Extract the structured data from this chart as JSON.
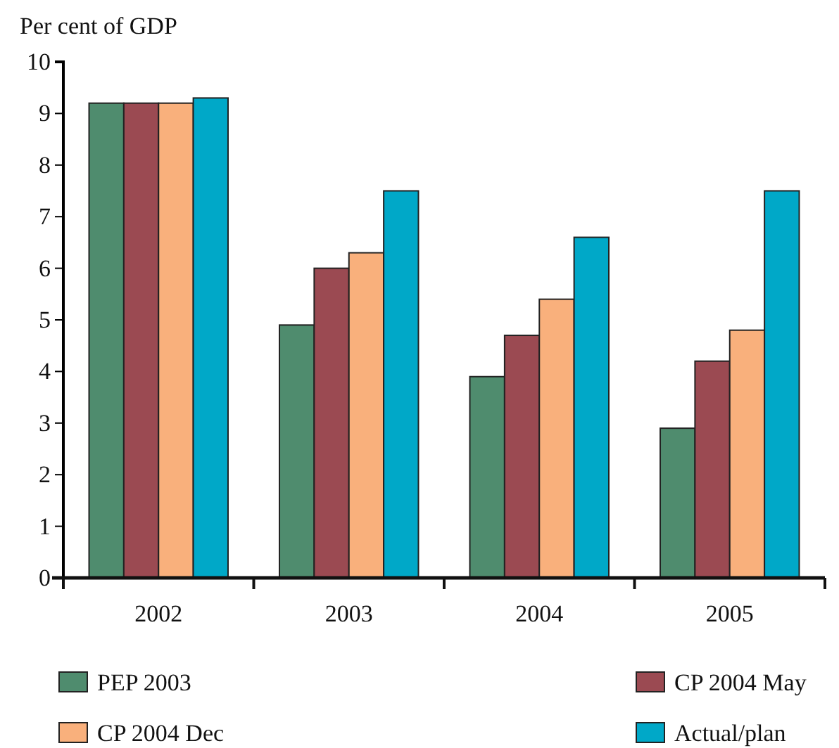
{
  "chart_data": {
    "type": "bar",
    "ylabel": "Per cent of GDP",
    "categories": [
      "2002",
      "2003",
      "2004",
      "2005"
    ],
    "series": [
      {
        "name": "PEP 2003",
        "color": "#4f8c6e",
        "values": [
          9.2,
          4.9,
          3.9,
          2.9
        ]
      },
      {
        "name": "CP 2004 May",
        "color": "#9b4a52",
        "values": [
          9.2,
          6.0,
          4.7,
          4.2
        ]
      },
      {
        "name": "CP 2004 Dec",
        "color": "#f9b07c",
        "values": [
          9.2,
          6.3,
          5.4,
          4.8
        ]
      },
      {
        "name": "Actual/plan",
        "color": "#00a8c8",
        "values": [
          9.3,
          7.5,
          6.6,
          7.5
        ]
      }
    ],
    "ylim": [
      0,
      10
    ],
    "yticks": [
      0,
      1,
      2,
      3,
      4,
      5,
      6,
      7,
      8,
      9,
      10
    ],
    "grid": false,
    "legend": "bottom"
  }
}
